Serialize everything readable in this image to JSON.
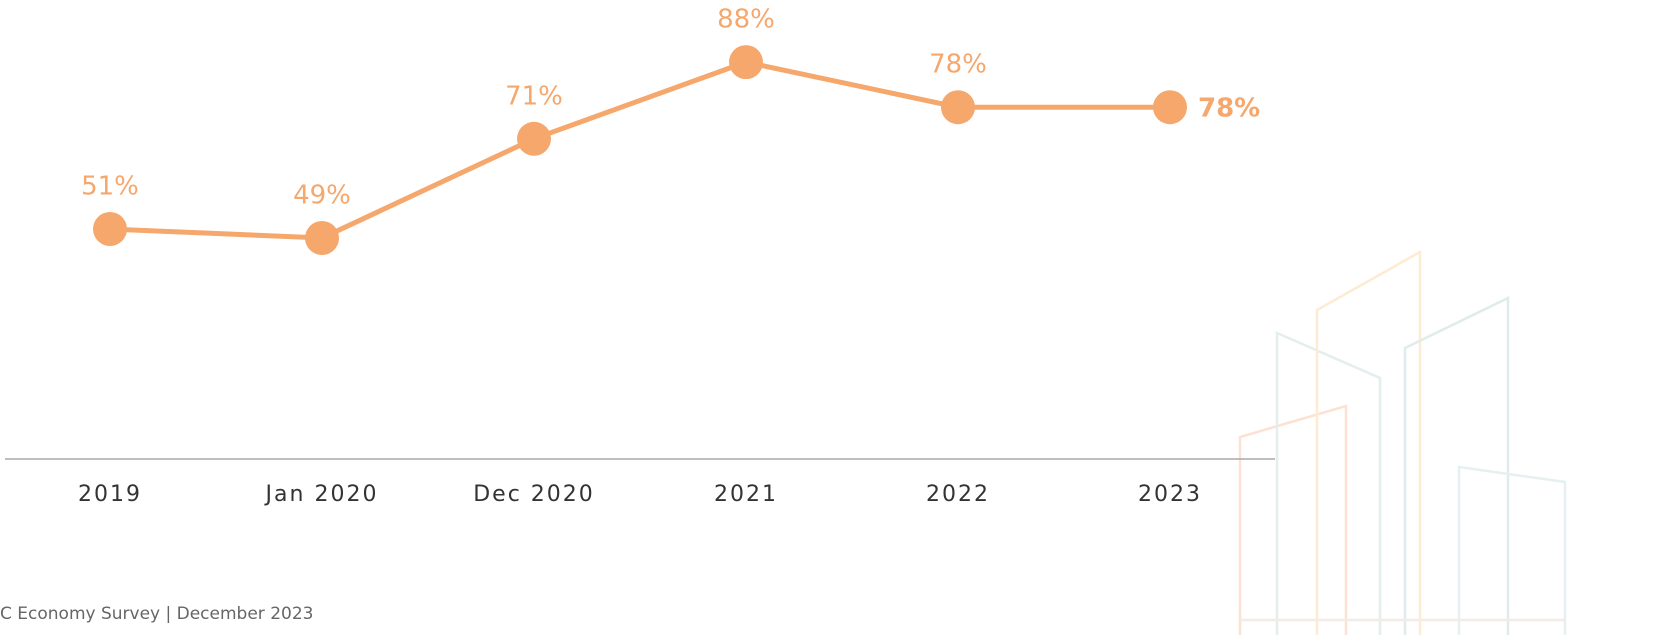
{
  "chart_data": {
    "type": "line",
    "categories": [
      "2019",
      "Jan 2020",
      "Dec 2020",
      "2021",
      "2022",
      "2023"
    ],
    "values": [
      51,
      49,
      71,
      88,
      78,
      78
    ],
    "value_labels": [
      "51%",
      "49%",
      "71%",
      "88%",
      "78%",
      "78%"
    ],
    "color": "#f5a76c"
  },
  "footer": "C Economy Survey | December 2023"
}
